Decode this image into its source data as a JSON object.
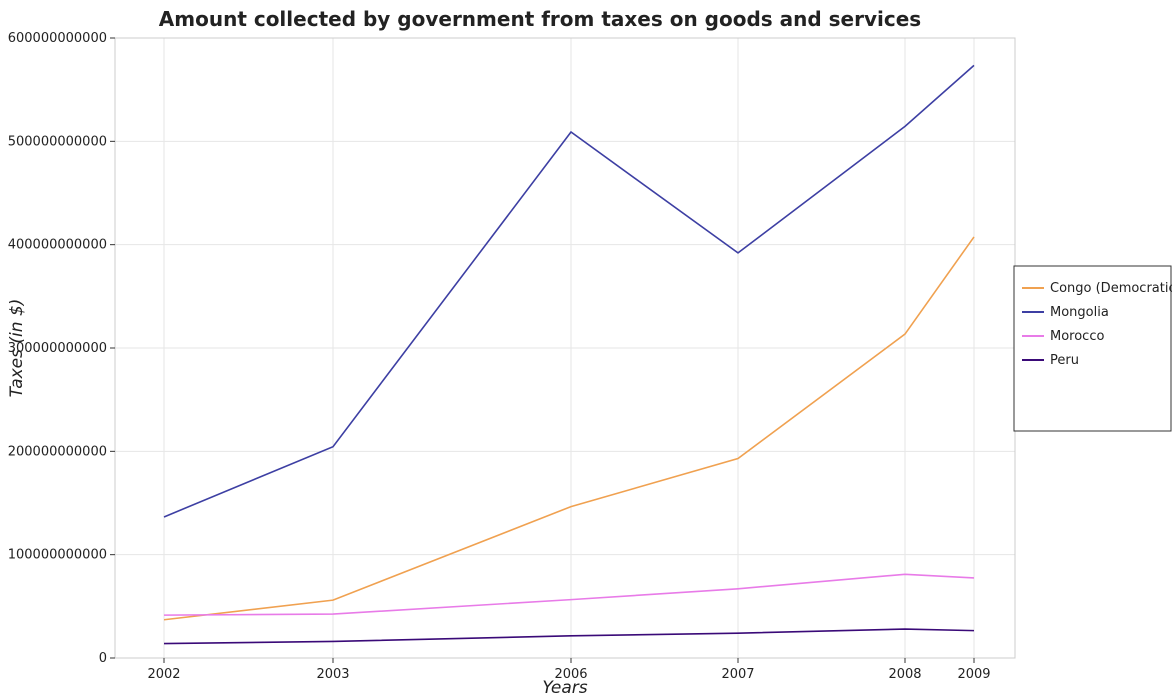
{
  "chart_data": {
    "type": "line",
    "title": "Amount collected by government from taxes on goods and services",
    "xlabel": "Years",
    "ylabel": "Taxes (in $)",
    "categories": [
      "2002",
      "2003",
      "2006",
      "2007",
      "2008",
      "2009"
    ],
    "ylim": [
      0,
      600000000000
    ],
    "yticks": [
      0,
      100000000000,
      200000000000,
      300000000000,
      400000000000,
      500000000000,
      600000000000
    ],
    "ytick_labels": [
      "0",
      "100000000000",
      "200000000000",
      "300000000000",
      "400000000000",
      "500000000000",
      "600000000000"
    ],
    "grid": true,
    "legend_position": "right",
    "series": [
      {
        "name": "Congo (Democratic)",
        "color": "#f0a150",
        "values": [
          37000000000,
          56000000000,
          146500000000,
          193000000000,
          313500000000,
          407500000000
        ]
      },
      {
        "name": "Mongolia",
        "color": "#3d3fa3",
        "values": [
          136500000000,
          204500000000,
          509000000000,
          392000000000,
          514500000000,
          573500000000
        ]
      },
      {
        "name": "Morocco",
        "color": "#e87be8",
        "values": [
          41500000000,
          42500000000,
          56500000000,
          67000000000,
          81000000000,
          77500000000
        ]
      },
      {
        "name": "Peru",
        "color": "#3a0a78",
        "values": [
          14000000000,
          16000000000,
          21500000000,
          24000000000,
          28000000000,
          26500000000
        ]
      }
    ]
  }
}
